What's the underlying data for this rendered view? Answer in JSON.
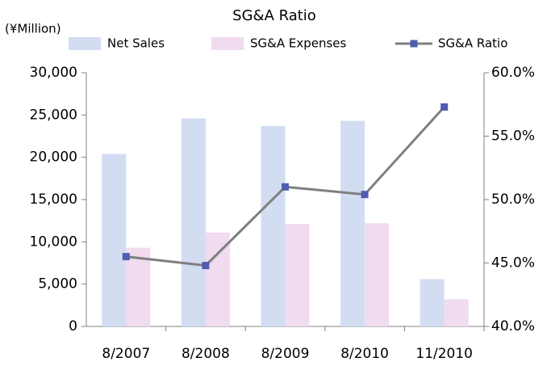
{
  "chart_data": {
    "type": "bar",
    "title": "SG&A Ratio",
    "y_label": "(¥Million)",
    "categories": [
      "8/2007",
      "8/2008",
      "8/2009",
      "8/2010",
      "11/2010"
    ],
    "series": [
      {
        "name": "Net Sales",
        "type": "bar",
        "color": "#d3ddf2",
        "values": [
          20400,
          24600,
          23700,
          24300,
          5600
        ]
      },
      {
        "name": "SG&A Expenses",
        "type": "bar",
        "color": "#f1dbef",
        "values": [
          9300,
          11100,
          12100,
          12200,
          3200
        ]
      },
      {
        "name": "SG&A Ratio",
        "type": "line",
        "axis": "y2",
        "color": "#7f7f7f",
        "marker_color": "#4f5cb0",
        "values": [
          45.5,
          44.8,
          51.0,
          50.4,
          57.3
        ]
      }
    ],
    "ylim": [
      0,
      30000
    ],
    "yticks": [
      0,
      {
        "value": 5000,
        "label": "5,000"
      },
      {
        "value": 10000,
        "label": "10,000"
      },
      {
        "value": 15000,
        "label": "15,000"
      },
      {
        "value": 20000,
        "label": "20,000"
      },
      {
        "value": 25000,
        "label": "25,000"
      },
      {
        "value": 30000,
        "label": "30,000"
      }
    ],
    "y2lim": [
      40,
      60
    ],
    "y2ticks": [
      {
        "value": 40,
        "label": "40.0%"
      },
      {
        "value": 45,
        "label": "45.0%"
      },
      {
        "value": 50,
        "label": "50.0%"
      },
      {
        "value": 55,
        "label": "55.0%"
      },
      {
        "value": 60,
        "label": "60.0%"
      }
    ],
    "grid": false,
    "legend": "top"
  }
}
